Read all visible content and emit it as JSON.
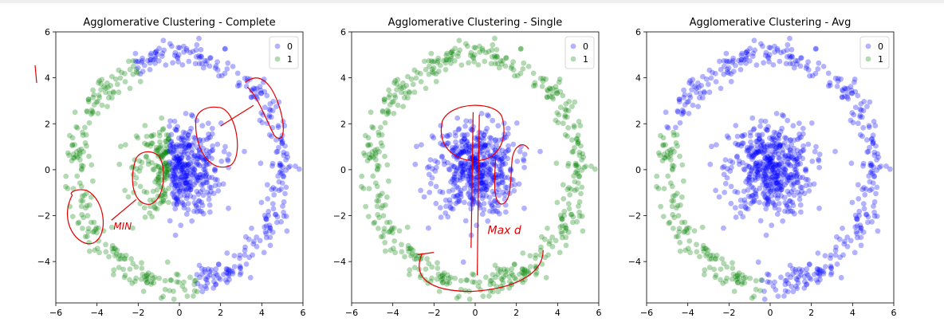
{
  "chart_data": [
    {
      "type": "scatter",
      "title": "Agglomerative Clustering - Complete",
      "xlabel": "",
      "ylabel": "",
      "xlim": [
        -6.0,
        6.0
      ],
      "ylim": [
        -5.8,
        6.0
      ],
      "xticks": [
        -6,
        -4,
        -2,
        0,
        2,
        4,
        6
      ],
      "yticks": [
        -4,
        -2,
        0,
        2,
        4,
        6
      ],
      "legend": {
        "position": "top-right",
        "entries": [
          "0",
          "1"
        ]
      },
      "grid": false,
      "structure": {
        "outer_ring_radius": 5.0,
        "outer_ring_noise": 0.3,
        "inner_blob_std": 1.0
      },
      "series": [
        {
          "name": "0",
          "color": "#0000ff",
          "regions": "outer ring from ~-80° through 0° to ~115°, plus right part of inner blob (x > -0.5)"
        },
        {
          "name": "1",
          "color": "#008000",
          "regions": "outer ring from ~115° through 180° to ~-80°, plus left part of inner blob (x < -0.5)"
        }
      ],
      "annotations": [
        "MIN"
      ]
    },
    {
      "type": "scatter",
      "title": "Agglomerative Clustering - Single",
      "xlabel": "",
      "ylabel": "",
      "xlim": [
        -6.0,
        6.0
      ],
      "ylim": [
        -5.8,
        6.0
      ],
      "xticks": [
        -6,
        -4,
        -2,
        0,
        2,
        4,
        6
      ],
      "yticks": [
        -4,
        -2,
        0,
        2,
        4,
        6
      ],
      "legend": {
        "position": "top-right",
        "entries": [
          "0",
          "1"
        ]
      },
      "grid": false,
      "structure": {
        "outer_ring_radius": 5.0,
        "outer_ring_noise": 0.3,
        "inner_blob_std": 1.0
      },
      "series": [
        {
          "name": "0",
          "color": "#0000ff",
          "regions": "entire inner blob"
        },
        {
          "name": "1",
          "color": "#008000",
          "regions": "entire outer ring"
        }
      ],
      "annotations": [
        "Max d"
      ]
    },
    {
      "type": "scatter",
      "title": "Agglomerative Clustering - Avg",
      "xlabel": "",
      "ylabel": "",
      "xlim": [
        -6.0,
        6.0
      ],
      "ylim": [
        -5.8,
        6.0
      ],
      "xticks": [
        -6,
        -4,
        -2,
        0,
        2,
        4,
        6
      ],
      "yticks": [
        -4,
        -2,
        0,
        2,
        4,
        6
      ],
      "legend": {
        "position": "top-right",
        "entries": [
          "0",
          "1"
        ]
      },
      "grid": false,
      "structure": {
        "outer_ring_radius": 5.0,
        "outer_ring_noise": 0.3,
        "inner_blob_std": 1.0
      },
      "series": [
        {
          "name": "0",
          "color": "#0000ff",
          "regions": "inner blob plus outer ring except lower-left arc"
        },
        {
          "name": "1",
          "color": "#008000",
          "regions": "outer ring lower-left arc from ~160° to ~265°"
        }
      ],
      "annotations": []
    }
  ],
  "colors": {
    "cluster0": "#0000ff",
    "cluster1": "#008000",
    "annotation": "#e00000",
    "axes": "#000000"
  }
}
